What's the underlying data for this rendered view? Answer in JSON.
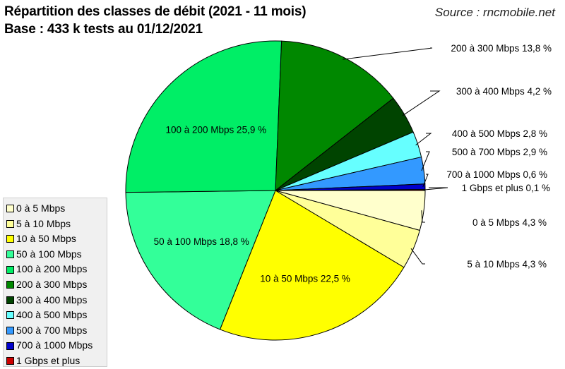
{
  "header": {
    "title_line1": "Répartition des classes de débit (2021 - 11 mois)",
    "title_line2": "Base : 433 k tests au 01/12/2021",
    "source": "Source : rncmobile.net"
  },
  "chart_data": {
    "type": "pie",
    "title": "Répartition des classes de débit (2021 - 11 mois)",
    "subtitle": "Base : 433 k tests au 01/12/2021",
    "unit": "%",
    "legend_position": "bottom-left",
    "slices": [
      {
        "name": "0 à 5 Mbps",
        "value": 4.3,
        "color": "#ffffcc",
        "label": "0 à 5 Mbps 4,3 %"
      },
      {
        "name": "5 à 10 Mbps",
        "value": 4.3,
        "color": "#ffff99",
        "label": "5 à 10 Mbps 4,3 %"
      },
      {
        "name": "10 à 50 Mbps",
        "value": 22.5,
        "color": "#ffff00",
        "label": "10 à 50 Mbps 22,5 %"
      },
      {
        "name": "50 à 100 Mbps",
        "value": 18.8,
        "color": "#33ff99",
        "label": "50 à 100 Mbps 18,8 %"
      },
      {
        "name": "100 à 200 Mbps",
        "value": 25.9,
        "color": "#00ee66",
        "label": "100 à 200 Mbps 25,9 %"
      },
      {
        "name": "200 à 300 Mbps",
        "value": 13.8,
        "color": "#008800",
        "label": "200 à 300 Mbps 13,8 %"
      },
      {
        "name": "300 à 400 Mbps",
        "value": 4.2,
        "color": "#004400",
        "label": "300 à 400 Mbps  4,2 %"
      },
      {
        "name": "400 à 500 Mbps",
        "value": 2.8,
        "color": "#66ffff",
        "label": "400 à 500 Mbps  2,8 %"
      },
      {
        "name": "500 à 700 Mbps",
        "value": 2.9,
        "color": "#3399ff",
        "label": "500 à 700 Mbps  2,9 %"
      },
      {
        "name": "700 à 1000 Mbps",
        "value": 0.6,
        "color": "#0000cc",
        "label": "700 à 1000 Mbps  0,6 %"
      },
      {
        "name": "1 Gbps et plus",
        "value": 0.1,
        "color": "#cc0000",
        "label": "1 Gbps et plus 0,1 %"
      }
    ]
  }
}
